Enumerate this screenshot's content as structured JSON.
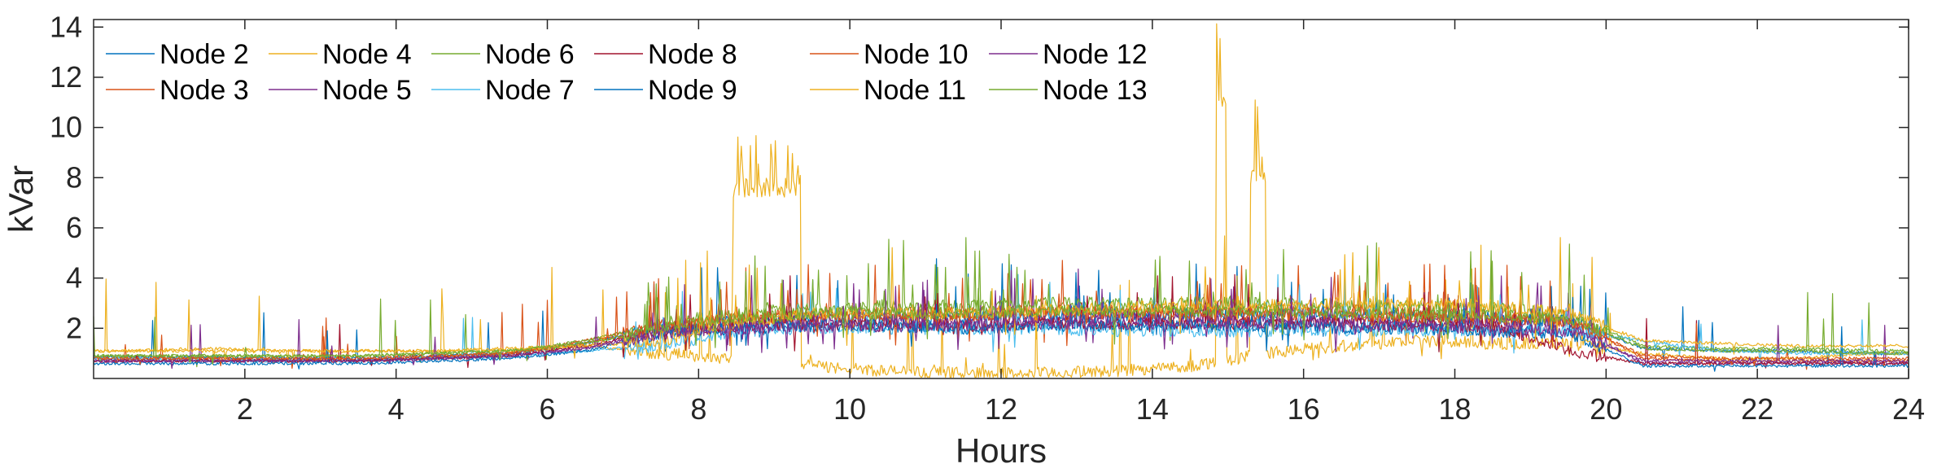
{
  "chart_data": {
    "type": "line",
    "title": "",
    "xlabel": "Hours",
    "ylabel": "kVar",
    "xlim": [
      0,
      24
    ],
    "ylim": [
      0,
      14.3
    ],
    "xticks": [
      2,
      4,
      6,
      8,
      10,
      12,
      14,
      16,
      18,
      20,
      22,
      24
    ],
    "yticks": [
      2,
      4,
      6,
      8,
      10,
      12,
      14
    ],
    "legend_position": "top-left",
    "series": [
      {
        "name": "Node 2",
        "color": "#0072BD",
        "profile": [
          0.85,
          0.85,
          0.8,
          0.8,
          0.9,
          1.0,
          1.4,
          2.0,
          2.3,
          2.4,
          2.4,
          2.4,
          2.5,
          2.5,
          2.6,
          2.6,
          2.5,
          2.5,
          2.4,
          2.3,
          1.2,
          1.1,
          1.1,
          1.0
        ],
        "spike_level": 2.4
      },
      {
        "name": "Node 3",
        "color": "#D95319",
        "profile": [
          0.8,
          0.8,
          0.75,
          0.75,
          0.85,
          1.0,
          1.5,
          2.1,
          2.4,
          2.6,
          2.6,
          2.6,
          2.7,
          2.7,
          2.7,
          2.7,
          2.7,
          2.6,
          2.5,
          2.4,
          0.8,
          0.7,
          0.7,
          0.7
        ],
        "spike_level": 2.0
      },
      {
        "name": "Node 4",
        "color": "#EDB120",
        "profile": [
          1.1,
          1.2,
          1.1,
          1.1,
          1.1,
          1.1,
          1.3,
          1.0,
          0.8,
          0.5,
          0.3,
          0.2,
          0.2,
          0.3,
          0.5,
          1.0,
          1.3,
          1.5,
          1.4,
          1.4,
          1.0,
          0.8,
          0.8,
          1.0
        ],
        "spike_level": 4.0
      },
      {
        "name": "Node 5",
        "color": "#7E2F8E",
        "profile": [
          0.7,
          0.7,
          0.7,
          0.7,
          0.8,
          0.9,
          1.2,
          1.9,
          2.1,
          2.3,
          2.3,
          2.2,
          2.3,
          2.4,
          2.4,
          2.3,
          2.3,
          2.3,
          2.2,
          2.2,
          0.6,
          0.6,
          0.6,
          0.6
        ],
        "spike_level": 2.1
      },
      {
        "name": "Node 6",
        "color": "#77AC30",
        "profile": [
          0.9,
          0.9,
          0.9,
          0.9,
          1.0,
          1.1,
          1.5,
          2.2,
          2.6,
          2.8,
          2.9,
          2.9,
          3.0,
          3.0,
          3.0,
          3.0,
          2.9,
          2.9,
          2.8,
          2.6,
          1.3,
          1.2,
          1.2,
          1.1
        ],
        "spike_level": 2.8
      },
      {
        "name": "Node 7",
        "color": "#4DBEEE",
        "profile": [
          0.8,
          0.7,
          0.7,
          0.7,
          0.8,
          0.9,
          1.1,
          1.3,
          1.9,
          2.0,
          2.0,
          2.0,
          2.0,
          1.9,
          1.9,
          1.9,
          1.9,
          1.9,
          1.9,
          1.9,
          1.5,
          1.1,
          1.0,
          1.0
        ],
        "spike_level": 2.3
      },
      {
        "name": "Node 8",
        "color": "#A2142F",
        "profile": [
          0.7,
          0.7,
          0.7,
          0.7,
          0.8,
          0.9,
          1.3,
          1.9,
          2.1,
          2.2,
          2.1,
          2.1,
          2.2,
          2.2,
          2.2,
          2.2,
          2.2,
          2.1,
          2.1,
          1.1,
          0.6,
          0.6,
          0.6,
          0.6
        ],
        "spike_level": 2.0
      },
      {
        "name": "Node 9",
        "color": "#0072BD",
        "profile": [
          0.6,
          0.6,
          0.6,
          0.6,
          0.7,
          0.8,
          1.1,
          1.8,
          2.0,
          2.1,
          2.1,
          2.0,
          2.1,
          2.1,
          2.1,
          2.1,
          2.0,
          2.0,
          1.9,
          1.8,
          0.5,
          0.5,
          0.5,
          0.5
        ],
        "spike_level": 1.9
      },
      {
        "name": "Node 10",
        "color": "#D95319",
        "profile": [
          0.8,
          0.8,
          0.8,
          0.8,
          0.9,
          1.0,
          1.4,
          2.0,
          2.4,
          2.5,
          2.5,
          2.5,
          2.6,
          2.6,
          2.6,
          2.6,
          2.5,
          2.5,
          2.4,
          2.3,
          0.9,
          0.8,
          0.8,
          0.8
        ],
        "spike_level": 2.2
      },
      {
        "name": "Node 11",
        "color": "#EDB120",
        "profile": [
          1.1,
          1.1,
          1.1,
          1.1,
          1.1,
          1.2,
          1.3,
          1.5,
          2.2,
          2.6,
          2.6,
          2.6,
          2.7,
          2.8,
          2.9,
          2.9,
          3.0,
          3.0,
          2.9,
          2.6,
          1.5,
          1.4,
          1.3,
          1.3
        ],
        "spike_level": 3.2
      },
      {
        "name": "Node 12",
        "color": "#7E2F8E",
        "profile": [
          0.7,
          0.7,
          0.7,
          0.7,
          0.8,
          0.9,
          1.2,
          1.8,
          2.0,
          2.1,
          2.1,
          2.1,
          2.2,
          2.2,
          2.2,
          2.2,
          2.1,
          2.1,
          2.0,
          1.9,
          0.7,
          0.7,
          0.7,
          0.7
        ],
        "spike_level": 2.0
      },
      {
        "name": "Node 13",
        "color": "#77AC30",
        "profile": [
          0.9,
          0.9,
          0.9,
          0.9,
          1.0,
          1.1,
          1.4,
          2.0,
          2.4,
          2.6,
          2.6,
          2.6,
          2.7,
          2.7,
          2.7,
          2.7,
          2.6,
          2.6,
          2.5,
          2.4,
          1.2,
          1.1,
          1.1,
          1.0
        ],
        "spike_level": 2.5
      }
    ],
    "events": [
      {
        "series": "Node 4",
        "x_start": 8.45,
        "x_end": 9.35,
        "base": 7.5,
        "peak": 10.0
      },
      {
        "series": "Node 4",
        "x_start": 14.85,
        "x_end": 14.97,
        "base": 11.0,
        "peak": 14.2
      },
      {
        "series": "Node 4",
        "x_start": 15.3,
        "x_end": 15.5,
        "base": 8.0,
        "peak": 11.5
      }
    ]
  }
}
